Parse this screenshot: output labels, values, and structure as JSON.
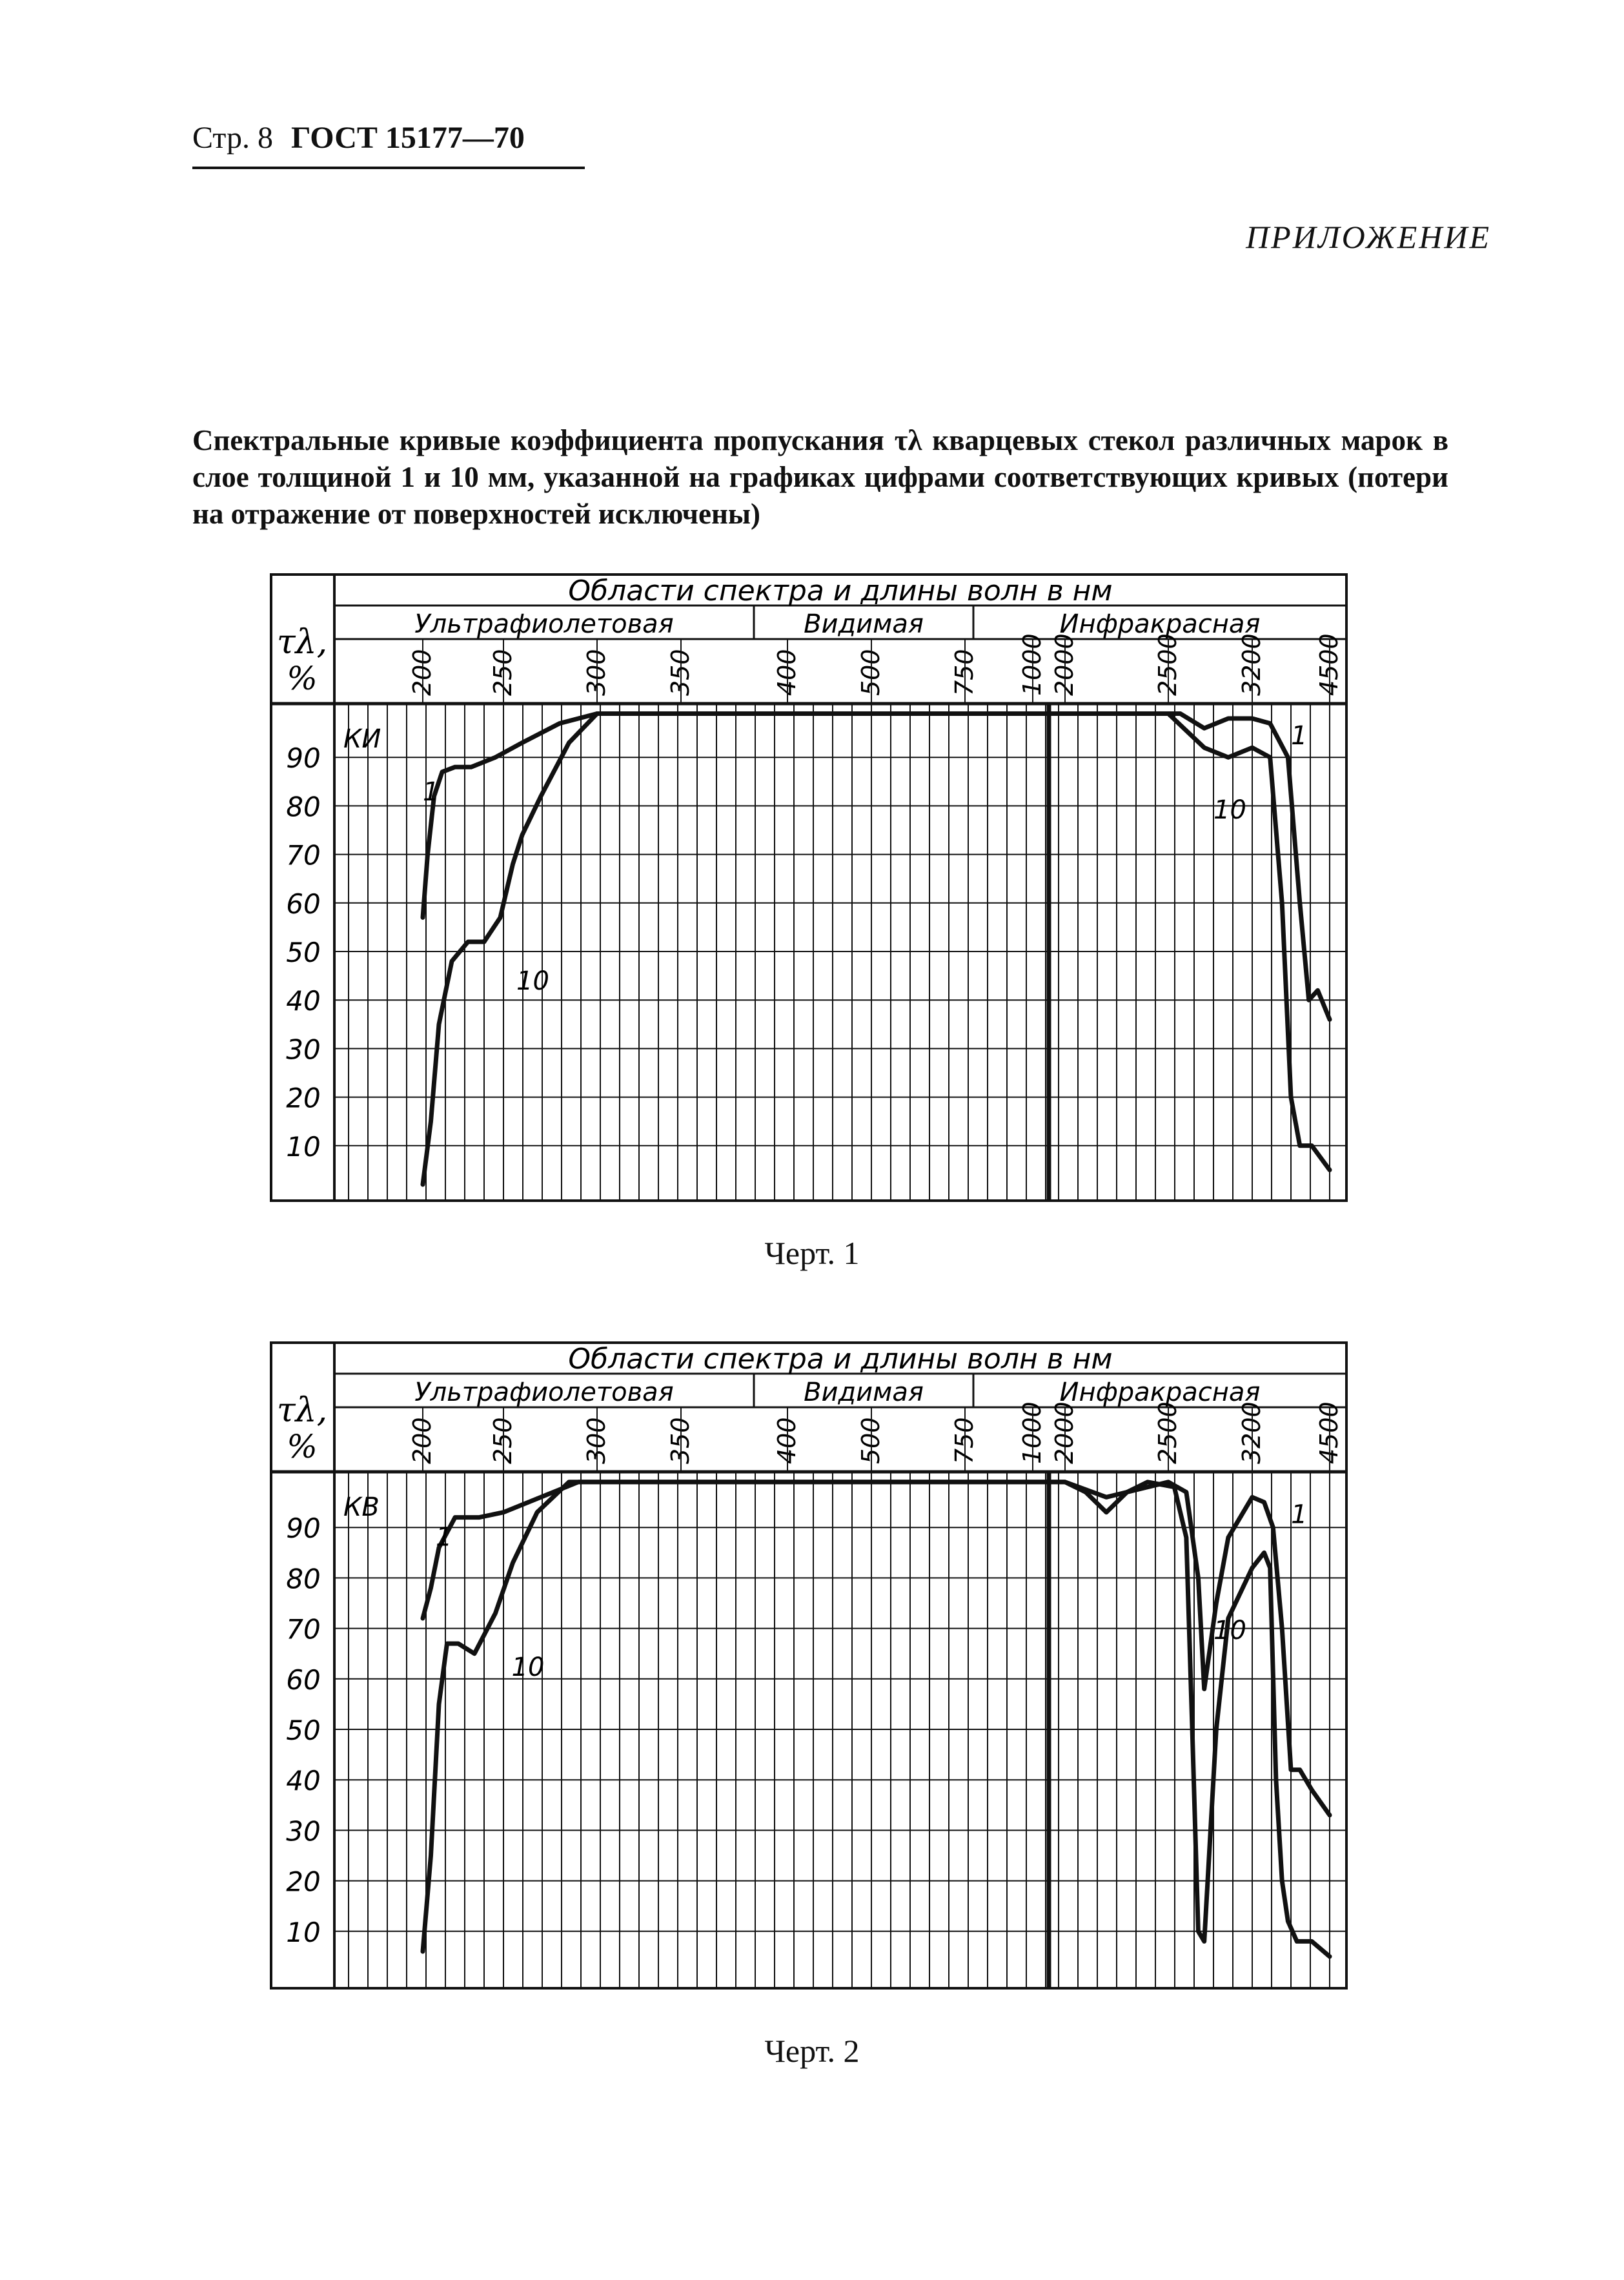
{
  "header": {
    "page": "Стр. 8",
    "standard": "ГОСТ 15177—70"
  },
  "appendix_title": "ПРИЛОЖЕНИЕ",
  "caption": "Спектральные кривые коэффициента пропускания τλ кварцевых стекол различных марок в слое толщиной 1 и 10 мм, указанной на графиках цифрами соответствующих кривых (потери на отражение от поверхностей исключены)",
  "colors": {
    "ink": "#111111",
    "paper": "#ffffff"
  },
  "chart_data": [
    {
      "type": "line",
      "figure_label": "Черт. 1",
      "glass_label": "КИ",
      "ylabel": "τλ, %",
      "header_title": "Области спектра и длины волн в нм",
      "regions": [
        "Ультрафиолетовая",
        "Видимая",
        "Инфракрасная"
      ],
      "x_tick_labels": [
        "200",
        "250",
        "300",
        "350",
        "400",
        "500",
        "750",
        "1000",
        "2000",
        "2500",
        "3200",
        "4500"
      ],
      "y_tick_labels": [
        "90",
        "80",
        "70",
        "60",
        "50",
        "40",
        "30",
        "20",
        "10"
      ],
      "ylim": [
        0,
        100
      ],
      "series": [
        {
          "name": "1",
          "points": [
            [
              200,
              57
            ],
            [
              203,
              70
            ],
            [
              207,
              82
            ],
            [
              212,
              87
            ],
            [
              220,
              88
            ],
            [
              230,
              88
            ],
            [
              245,
              90
            ],
            [
              260,
              93
            ],
            [
              280,
              97
            ],
            [
              300,
              99
            ],
            [
              2000,
              99
            ],
            [
              2600,
              99
            ],
            [
              2800,
              96
            ],
            [
              3000,
              98
            ],
            [
              3200,
              98
            ],
            [
              3500,
              97
            ],
            [
              3800,
              90
            ],
            [
              4000,
              60
            ],
            [
              4150,
              40
            ],
            [
              4300,
              42
            ],
            [
              4500,
              36
            ]
          ]
        },
        {
          "name": "10",
          "points": [
            [
              200,
              2
            ],
            [
              205,
              15
            ],
            [
              210,
              35
            ],
            [
              218,
              48
            ],
            [
              228,
              52
            ],
            [
              238,
              52
            ],
            [
              248,
              57
            ],
            [
              255,
              68
            ],
            [
              260,
              74
            ],
            [
              270,
              82
            ],
            [
              285,
              93
            ],
            [
              300,
              99
            ],
            [
              2000,
              99
            ],
            [
              2500,
              99
            ],
            [
              2800,
              92
            ],
            [
              3000,
              90
            ],
            [
              3200,
              92
            ],
            [
              3500,
              90
            ],
            [
              3700,
              60
            ],
            [
              3850,
              20
            ],
            [
              4000,
              10
            ],
            [
              4200,
              10
            ],
            [
              4500,
              5
            ]
          ]
        }
      ]
    },
    {
      "type": "line",
      "figure_label": "Черт. 2",
      "glass_label": "КВ",
      "ylabel": "τλ, %",
      "header_title": "Области спектра и длины волн в нм",
      "regions": [
        "Ультрафиолетовая",
        "Видимая",
        "Инфракрасная"
      ],
      "x_tick_labels": [
        "200",
        "250",
        "300",
        "350",
        "400",
        "500",
        "750",
        "1000",
        "2000",
        "2500",
        "3200",
        "4500"
      ],
      "y_tick_labels": [
        "90",
        "80",
        "70",
        "60",
        "50",
        "40",
        "30",
        "20",
        "10"
      ],
      "ylim": [
        0,
        100
      ],
      "series": [
        {
          "name": "1",
          "points": [
            [
              200,
              72
            ],
            [
              205,
              78
            ],
            [
              210,
              86
            ],
            [
              220,
              92
            ],
            [
              235,
              92
            ],
            [
              250,
              93
            ],
            [
              270,
              96
            ],
            [
              290,
              99
            ],
            [
              2000,
              99
            ],
            [
              2200,
              96
            ],
            [
              2300,
              97
            ],
            [
              2500,
              99
            ],
            [
              2650,
              97
            ],
            [
              2750,
              80
            ],
            [
              2800,
              58
            ],
            [
              2900,
              75
            ],
            [
              3000,
              88
            ],
            [
              3200,
              96
            ],
            [
              3400,
              95
            ],
            [
              3550,
              90
            ],
            [
              3700,
              70
            ],
            [
              3850,
              42
            ],
            [
              4000,
              42
            ],
            [
              4200,
              38
            ],
            [
              4500,
              33
            ]
          ]
        },
        {
          "name": "10",
          "points": [
            [
              200,
              6
            ],
            [
              205,
              25
            ],
            [
              210,
              55
            ],
            [
              215,
              67
            ],
            [
              222,
              67
            ],
            [
              232,
              65
            ],
            [
              245,
              73
            ],
            [
              255,
              83
            ],
            [
              268,
              93
            ],
            [
              285,
              99
            ],
            [
              2000,
              99
            ],
            [
              2100,
              97
            ],
            [
              2200,
              93
            ],
            [
              2300,
              97
            ],
            [
              2400,
              99
            ],
            [
              2550,
              98
            ],
            [
              2650,
              88
            ],
            [
              2700,
              50
            ],
            [
              2750,
              10
            ],
            [
              2800,
              8
            ],
            [
              2900,
              50
            ],
            [
              3000,
              72
            ],
            [
              3200,
              82
            ],
            [
              3400,
              85
            ],
            [
              3500,
              82
            ],
            [
              3600,
              40
            ],
            [
              3700,
              20
            ],
            [
              3800,
              12
            ],
            [
              3950,
              8
            ],
            [
              4200,
              8
            ],
            [
              4500,
              5
            ]
          ]
        }
      ]
    }
  ]
}
